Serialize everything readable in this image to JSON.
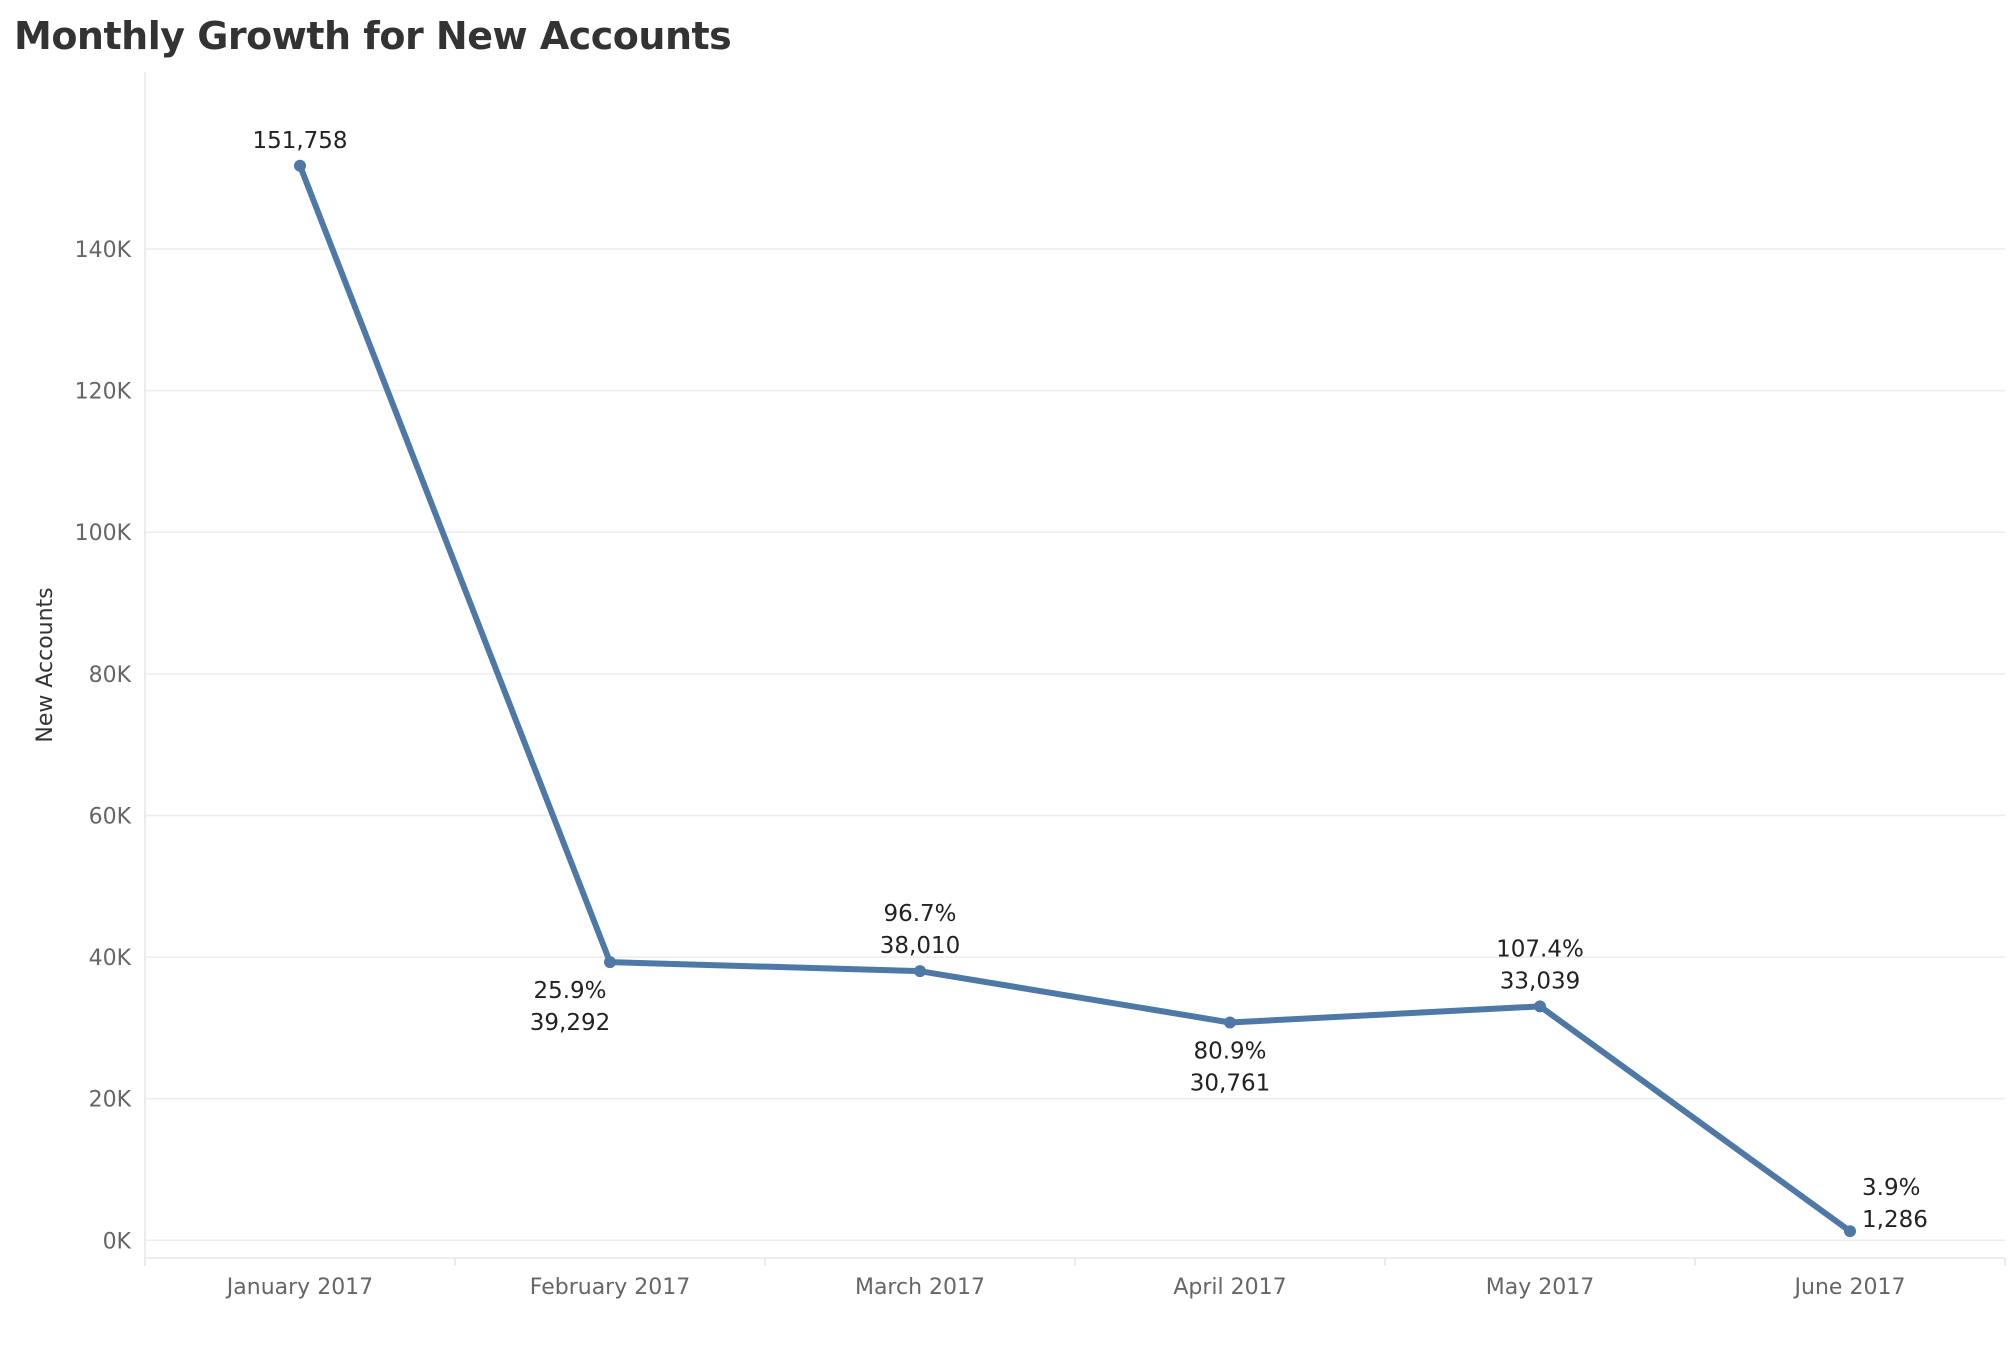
{
  "chart_data": {
    "type": "line",
    "title": "Monthly Growth for New Accounts",
    "xlabel": "",
    "ylabel": "New Accounts",
    "categories": [
      "January 2017",
      "February 2017",
      "March 2017",
      "April 2017",
      "May 2017",
      "June 2017"
    ],
    "series": [
      {
        "values": [
          151758,
          39292,
          38010,
          30761,
          33039,
          1286
        ],
        "value_labels": [
          "151,758",
          "39,292",
          "38,010",
          "30,761",
          "33,039",
          "1,286"
        ],
        "growth_labels": [
          "",
          "25.9%",
          "96.7%",
          "80.9%",
          "107.4%",
          "3.9%"
        ],
        "color": "#4e79a7"
      }
    ],
    "ylim": [
      -2500,
      165000
    ],
    "yticks": [
      0,
      20000,
      40000,
      60000,
      80000,
      100000,
      120000,
      140000
    ],
    "ytick_labels": [
      "0K",
      "20K",
      "40K",
      "60K",
      "80K",
      "100K",
      "120K",
      "140K"
    ],
    "grid": true,
    "legend": "none"
  }
}
